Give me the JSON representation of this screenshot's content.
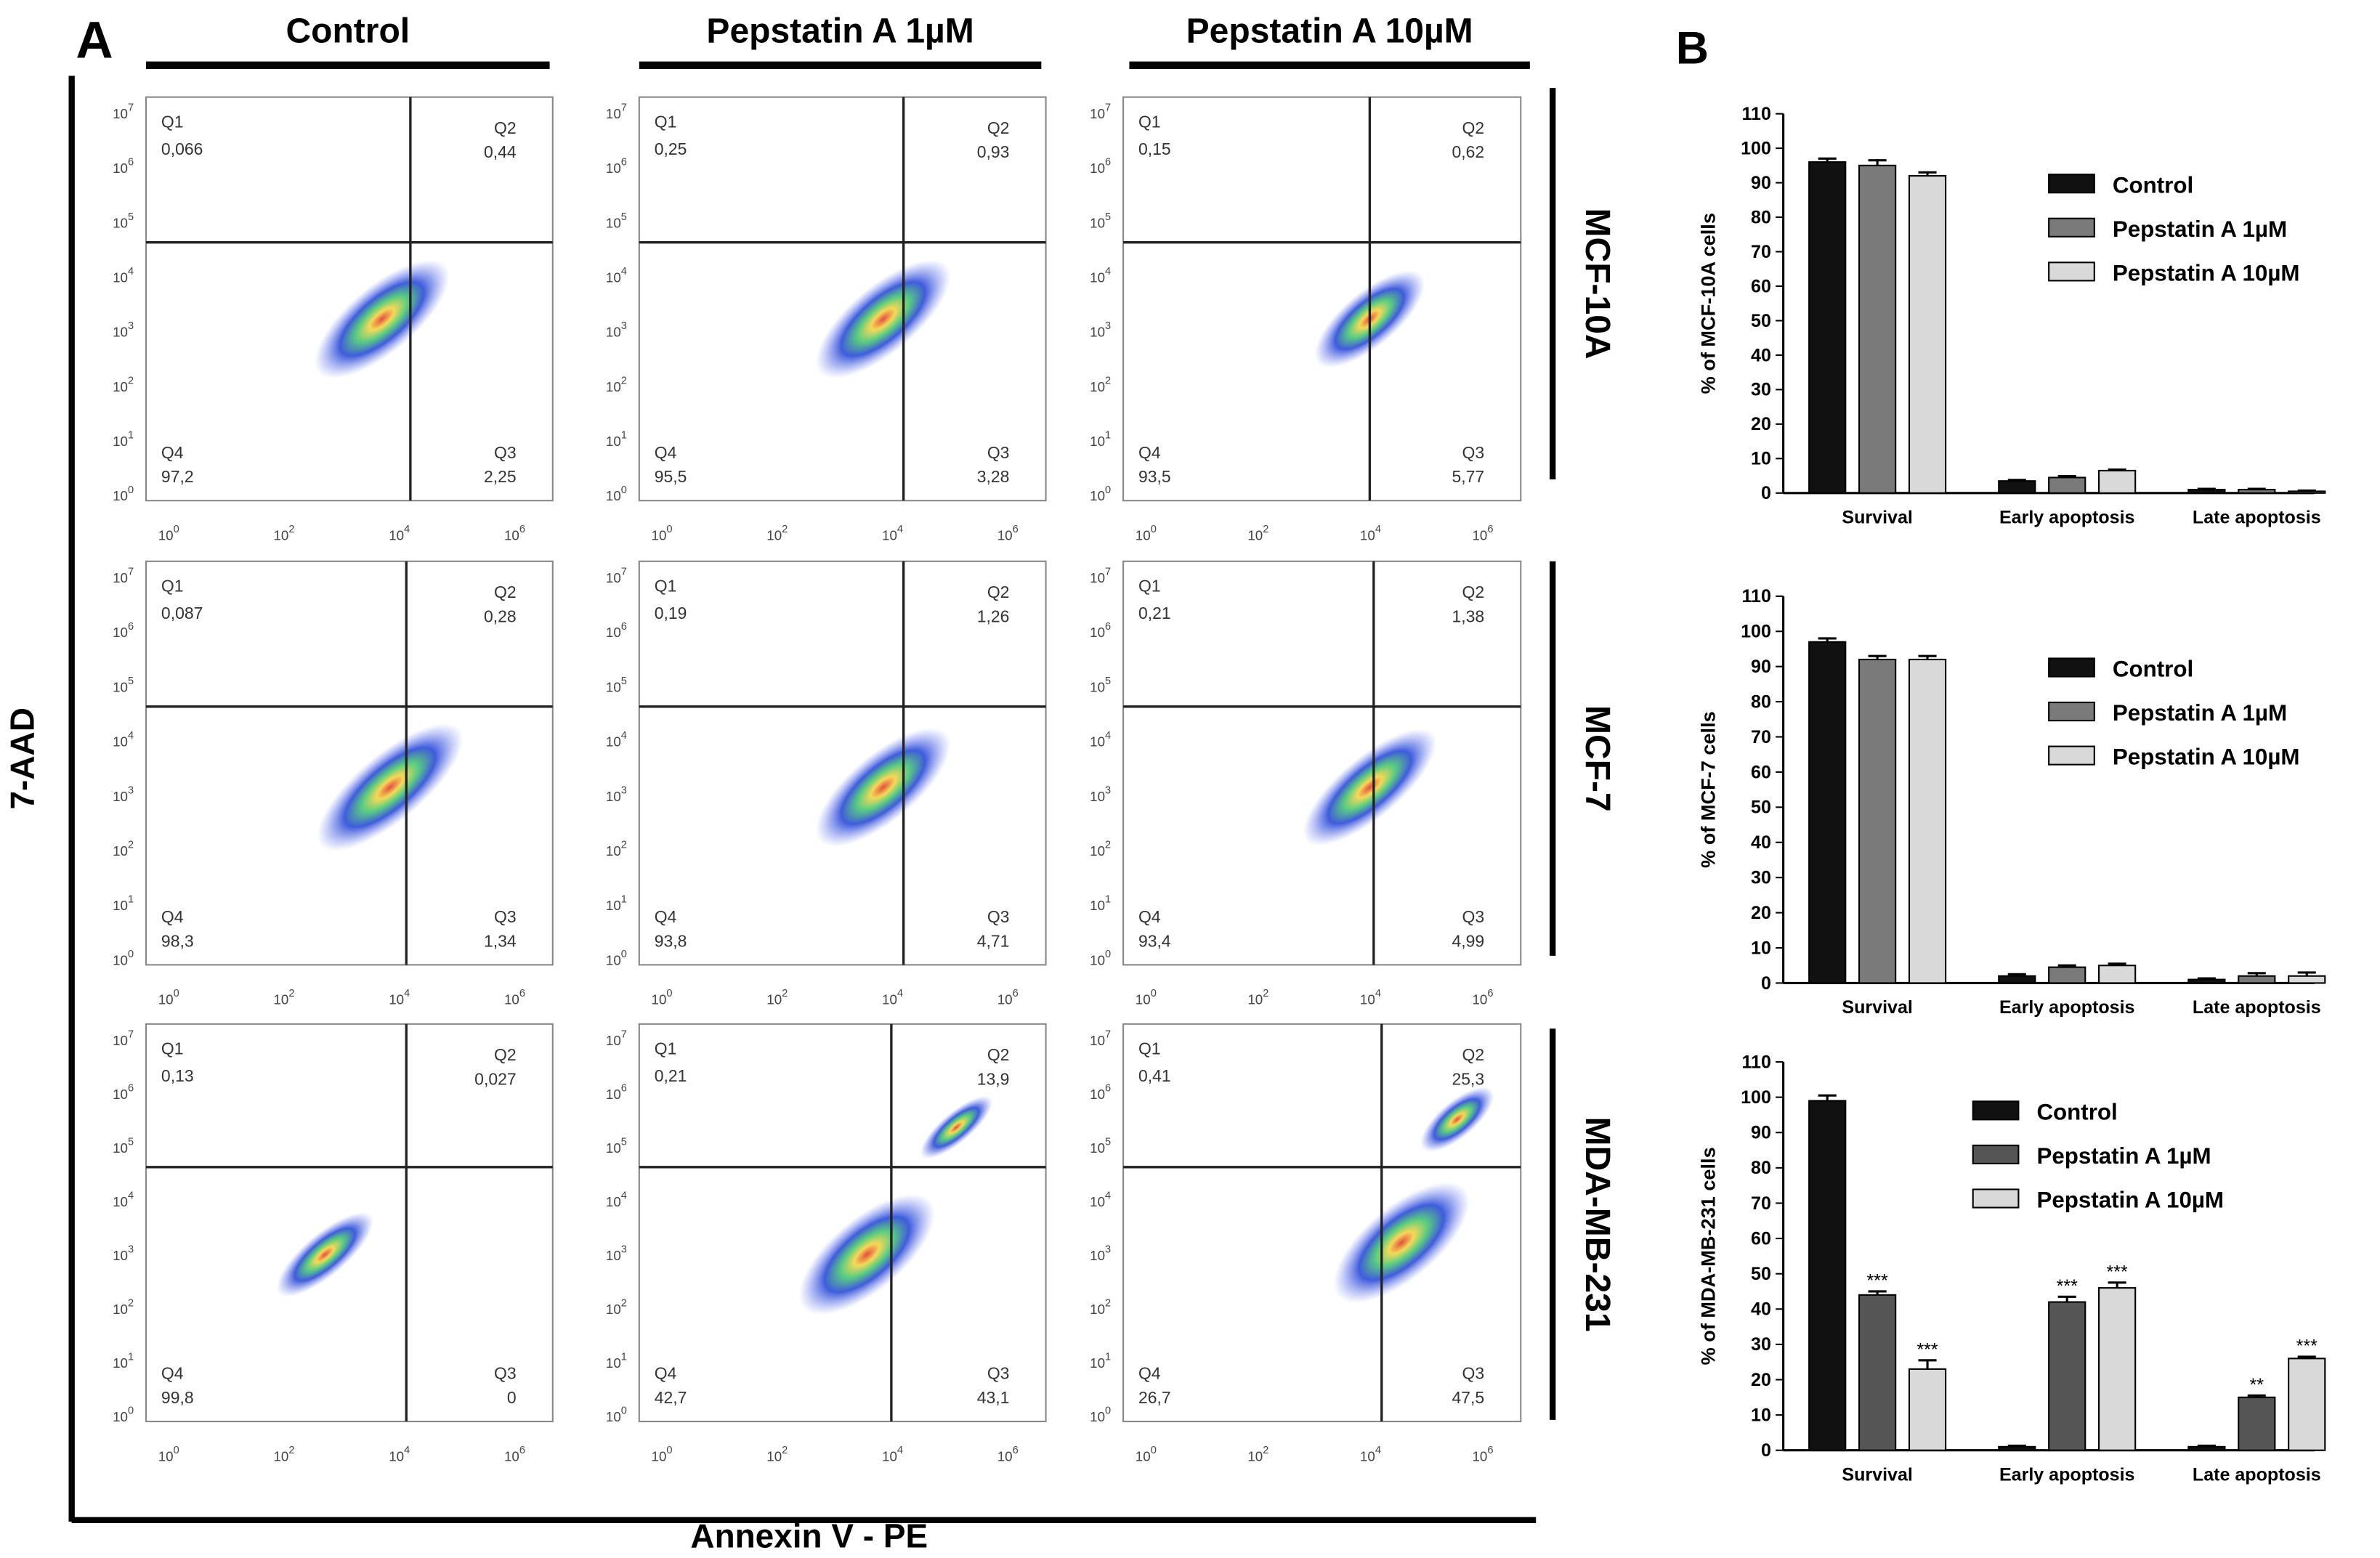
{
  "panel_a": {
    "label": "A",
    "columns": [
      "Control",
      "Pepstatin A 1µM",
      "Pepstatin A 10µM"
    ],
    "rows": [
      "MCF-10A",
      "MCF-7",
      "MDA-MB-231"
    ],
    "y_label": "7-AAD",
    "x_label": "Annexin V - PE",
    "tick_base": "10",
    "x_tick_exponents": [
      "0",
      "2",
      "4",
      "6"
    ],
    "y_tick_exponents": [
      "0",
      "1",
      "2",
      "3",
      "4",
      "5",
      "6",
      "7"
    ],
    "quadrant_names": [
      "Q1",
      "Q2",
      "Q3",
      "Q4"
    ],
    "plots": [
      [
        {
          "Q1": "0,066",
          "Q2": "0,44",
          "Q3": "2,25",
          "Q4": "97,2"
        },
        {
          "Q1": "0,25",
          "Q2": "0,93",
          "Q3": "3,28",
          "Q4": "95,5"
        },
        {
          "Q1": "0,15",
          "Q2": "0,62",
          "Q3": "5,77",
          "Q4": "93,5"
        }
      ],
      [
        {
          "Q1": "0,087",
          "Q2": "0,28",
          "Q3": "1,34",
          "Q4": "98,3"
        },
        {
          "Q1": "0,19",
          "Q2": "1,26",
          "Q3": "4,71",
          "Q4": "93,8"
        },
        {
          "Q1": "0,21",
          "Q2": "1,38",
          "Q3": "4,99",
          "Q4": "93,4"
        }
      ],
      [
        {
          "Q1": "0,13",
          "Q2": "0,027",
          "Q3": "0",
          "Q4": "99,8"
        },
        {
          "Q1": "0,21",
          "Q2": "13,9",
          "Q3": "43,1",
          "Q4": "42,7"
        },
        {
          "Q1": "0,41",
          "Q2": "25,3",
          "Q3": "47,5",
          "Q4": "26,7"
        }
      ]
    ]
  },
  "panel_b": {
    "label": "B"
  },
  "chart_data": [
    {
      "type": "bar",
      "y_label": "% of MCF-10A cells",
      "categories": [
        "Survival",
        "Early apoptosis",
        "Late apoptosis"
      ],
      "ylim": [
        0,
        110
      ],
      "yticks": [
        0,
        10,
        20,
        30,
        40,
        50,
        60,
        70,
        80,
        90,
        100,
        110
      ],
      "series": [
        {
          "name": "Control",
          "color": "#111111",
          "values": [
            96,
            3.5,
            1
          ],
          "errors": [
            1,
            0.3,
            0.2
          ]
        },
        {
          "name": "Pepstatin A 1µM",
          "color": "#7a7a7a",
          "values": [
            95,
            4.5,
            1
          ],
          "errors": [
            1.5,
            0.4,
            0.2
          ]
        },
        {
          "name": "Pepstatin A 10µM",
          "color": "#d9d9d9",
          "values": [
            92,
            6.5,
            0.5
          ],
          "errors": [
            1,
            0.3,
            0.2
          ]
        }
      ]
    },
    {
      "type": "bar",
      "y_label": "% of MCF-7 cells",
      "categories": [
        "Survival",
        "Early apoptosis",
        "Late apoptosis"
      ],
      "ylim": [
        0,
        110
      ],
      "yticks": [
        0,
        10,
        20,
        30,
        40,
        50,
        60,
        70,
        80,
        90,
        100,
        110
      ],
      "series": [
        {
          "name": "Control",
          "color": "#111111",
          "values": [
            97,
            2,
            1
          ],
          "errors": [
            1,
            0.5,
            0.3
          ]
        },
        {
          "name": "Pepstatin A 1µM",
          "color": "#7a7a7a",
          "values": [
            92,
            4.5,
            2
          ],
          "errors": [
            1,
            0.5,
            0.8
          ]
        },
        {
          "name": "Pepstatin A 10µM",
          "color": "#d9d9d9",
          "values": [
            92,
            5,
            2
          ],
          "errors": [
            1,
            0.5,
            1
          ]
        }
      ]
    },
    {
      "type": "bar",
      "y_label": "% of MDA-MB-231 cells",
      "categories": [
        "Survival",
        "Early apoptosis",
        "Late apoptosis"
      ],
      "ylim": [
        0,
        110
      ],
      "yticks": [
        0,
        10,
        20,
        30,
        40,
        50,
        60,
        70,
        80,
        90,
        100,
        110
      ],
      "series": [
        {
          "name": "Control",
          "color": "#111111",
          "values": [
            99,
            1,
            1
          ],
          "errors": [
            1.5,
            0.3,
            0.3
          ]
        },
        {
          "name": "Pepstatin A 1µM",
          "color": "#555555",
          "values": [
            44,
            42,
            15
          ],
          "errors": [
            1,
            1.5,
            0.5
          ],
          "annotations": [
            "***",
            "***",
            "**"
          ]
        },
        {
          "name": "Pepstatin A 10µM",
          "color": "#d9d9d9",
          "values": [
            23,
            46,
            26
          ],
          "errors": [
            2.5,
            1.5,
            0.5
          ],
          "annotations": [
            "***",
            "***",
            "***"
          ]
        }
      ]
    }
  ]
}
